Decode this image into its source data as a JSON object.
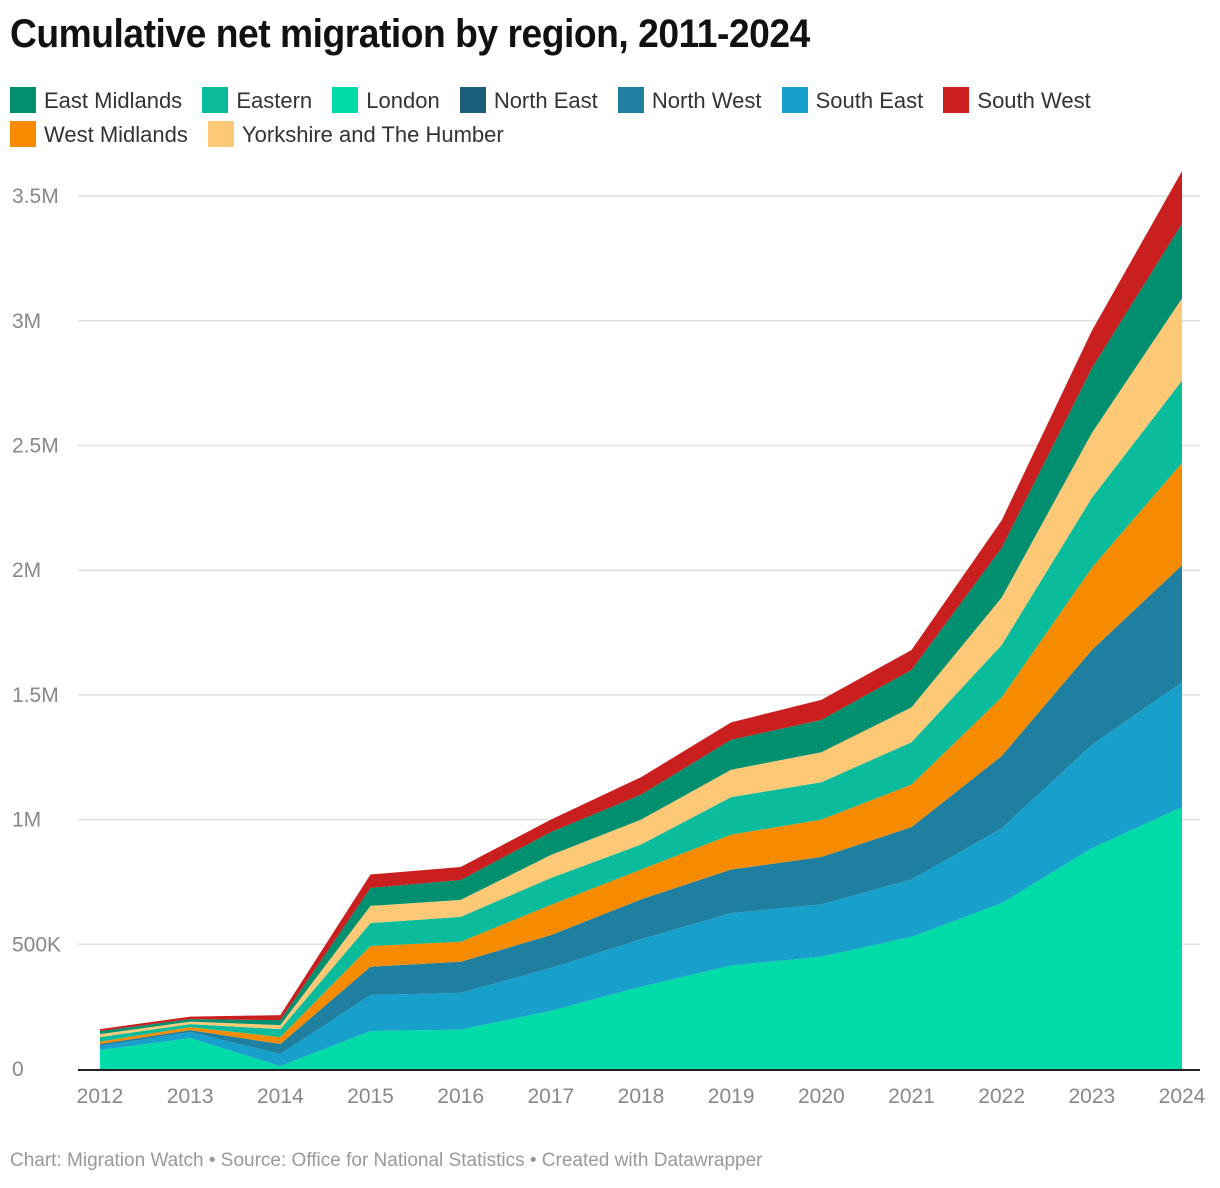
{
  "chart_data": {
    "type": "area",
    "stacked": true,
    "title": "Cumulative net migration by region, 2011-2024",
    "xlabel": "",
    "ylabel": "",
    "x": [
      2012,
      2013,
      2014,
      2015,
      2016,
      2017,
      2018,
      2019,
      2020,
      2021,
      2022,
      2023,
      2024
    ],
    "ylim": [
      0,
      3600000
    ],
    "yticks": [
      0,
      500000,
      1000000,
      1500000,
      2000000,
      2500000,
      3000000,
      3500000
    ],
    "ytick_labels": [
      "0",
      "500K",
      "1M",
      "1.5M",
      "2M",
      "2.5M",
      "3M",
      "3.5M"
    ],
    "xtick_labels": [
      "2012",
      "2013",
      "2014",
      "2015",
      "2016",
      "2017",
      "2018",
      "2019",
      "2020",
      "2021",
      "2022",
      "2023",
      "2024"
    ],
    "grid": true,
    "legend_position": "top",
    "legend": [
      "East Midlands",
      "Eastern",
      "London",
      "North East",
      "North West",
      "South East",
      "South West",
      "West Midlands",
      "Yorkshire and The Humber"
    ],
    "series": [
      {
        "name": "London",
        "color": "#00dba7",
        "values": [
          76000,
          124000,
          12000,
          152000,
          158000,
          233000,
          330000,
          415000,
          450000,
          530000,
          665000,
          885000,
          1050000
        ]
      },
      {
        "name": "South East",
        "color": "#18a0cc",
        "values": [
          16000,
          24000,
          48000,
          145000,
          147000,
          172000,
          190000,
          210000,
          210000,
          230000,
          300000,
          415000,
          500000
        ]
      },
      {
        "name": "North East",
        "color": "#1a5e7a",
        "values": [
          0,
          0,
          0,
          0,
          0,
          0,
          0,
          0,
          0,
          0,
          0,
          0,
          0
        ]
      },
      {
        "name": "North West",
        "color": "#1e7fa0",
        "values": [
          8000,
          8000,
          40000,
          113000,
          125000,
          132000,
          160000,
          175000,
          190000,
          210000,
          290000,
          380000,
          470000
        ]
      },
      {
        "name": "West Midlands",
        "color": "#f78b00",
        "values": [
          10000,
          12000,
          28000,
          83000,
          80000,
          121000,
          120000,
          140000,
          150000,
          170000,
          235000,
          330000,
          410000
        ]
      },
      {
        "name": "Eastern",
        "color": "#0bbc9c",
        "values": [
          18000,
          12000,
          32000,
          92000,
          100000,
          108000,
          100000,
          150000,
          150000,
          170000,
          210000,
          280000,
          330000
        ]
      },
      {
        "name": "Yorkshire and The Humber",
        "color": "#fdc977",
        "values": [
          12000,
          10000,
          16000,
          69000,
          68000,
          92000,
          100000,
          110000,
          120000,
          140000,
          190000,
          260000,
          330000
        ]
      },
      {
        "name": "East Midlands",
        "color": "#00906f",
        "values": [
          12000,
          10000,
          20000,
          72000,
          80000,
          92000,
          100000,
          120000,
          130000,
          150000,
          200000,
          260000,
          300000
        ]
      },
      {
        "name": "South West",
        "color": "#c91f1f",
        "values": [
          8000,
          10000,
          20000,
          54000,
          52000,
          50000,
          70000,
          70000,
          80000,
          80000,
          110000,
          150000,
          210000
        ]
      }
    ]
  },
  "footer": "Chart: Migration Watch • Source: Office for National Statistics • Created with Datawrapper"
}
